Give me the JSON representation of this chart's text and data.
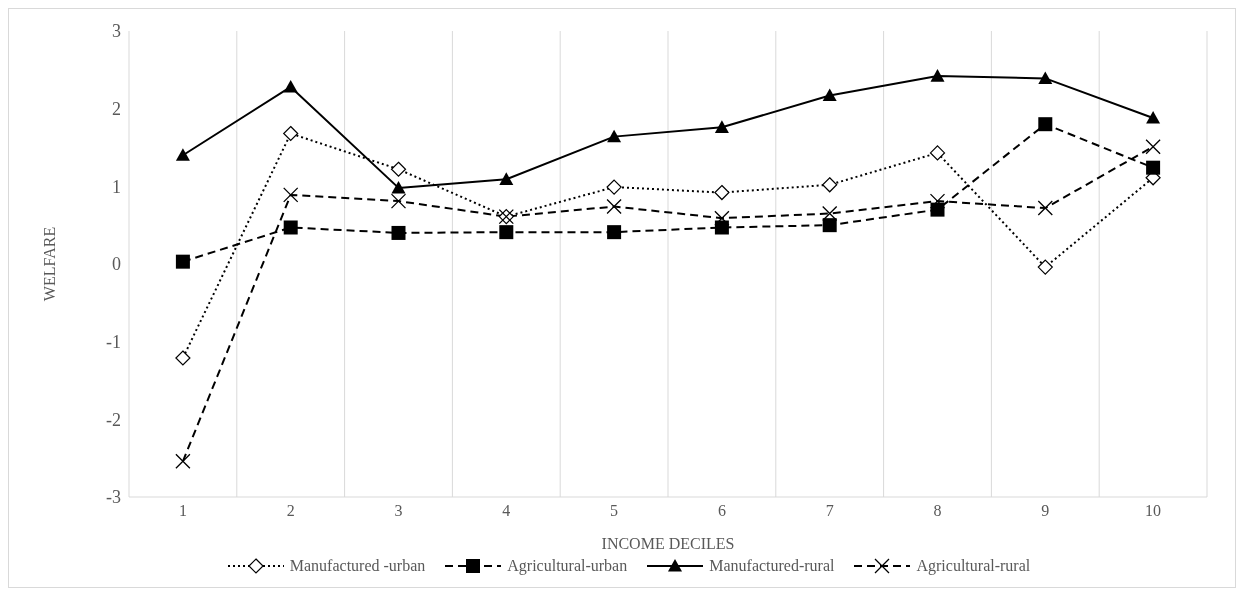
{
  "chart_data": {
    "type": "line",
    "xlabel": "INCOME DECILES",
    "ylabel": "WELFARE",
    "categories": [
      "1",
      "2",
      "3",
      "4",
      "5",
      "6",
      "7",
      "8",
      "9",
      "10"
    ],
    "series": [
      {
        "name": "Manufactured -urban",
        "color": "#000000",
        "marker": "diamond",
        "line_style": "dotted",
        "values": [
          -1.21,
          1.68,
          1.22,
          0.61,
          0.99,
          0.92,
          1.02,
          1.43,
          -0.04,
          1.11
        ]
      },
      {
        "name": "Agricultural-urban",
        "color": "#000000",
        "marker": "square",
        "line_style": "dashed",
        "values": [
          0.03,
          0.47,
          0.4,
          0.41,
          0.41,
          0.47,
          0.5,
          0.7,
          1.8,
          1.24
        ]
      },
      {
        "name": "Manufactured-rural",
        "color": "#000000",
        "marker": "triangle",
        "line_style": "solid",
        "values": [
          1.4,
          2.28,
          0.98,
          1.09,
          1.64,
          1.76,
          2.17,
          2.42,
          2.39,
          1.88
        ]
      },
      {
        "name": "Agricultural-rural",
        "color": "#000000",
        "marker": "cross",
        "line_style": "dashed",
        "values": [
          -2.54,
          0.89,
          0.81,
          0.61,
          0.74,
          0.59,
          0.65,
          0.81,
          0.72,
          1.51
        ]
      }
    ],
    "ylim": [
      -3,
      3
    ],
    "yticks": [
      -3,
      -2,
      -1,
      0,
      1,
      2,
      3
    ],
    "grid": "x",
    "legend": "bottom"
  }
}
